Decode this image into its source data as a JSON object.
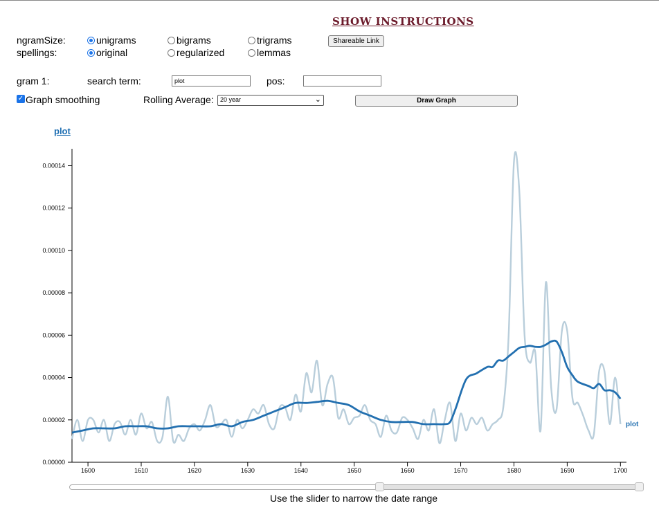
{
  "header": {
    "show_instructions": "SHOW INSTRUCTIONS",
    "shareable_link": "Shareable Link"
  },
  "options": {
    "ngram_label": "ngramSize:",
    "ngram_options": [
      "unigrams",
      "bigrams",
      "trigrams"
    ],
    "ngram_selected": "unigrams",
    "spellings_label": "spellings:",
    "spelling_options": [
      "original",
      "regularized",
      "lemmas"
    ],
    "spelling_selected": "original"
  },
  "query": {
    "gram_label": "gram 1:",
    "search_label": "search term:",
    "search_value": "plot",
    "pos_label": "pos:",
    "pos_value": ""
  },
  "controls": {
    "smoothing_label": "Graph smoothing",
    "smoothing_checked": true,
    "rolling_label": "Rolling Average:",
    "rolling_value": "20 year",
    "draw_button": "Draw Graph"
  },
  "legend": {
    "term": "plot"
  },
  "slider": {
    "caption": "Use the slider to narrow the date range",
    "range": [
      1597,
      1701
    ],
    "selected_start": 1655
  },
  "colors": {
    "smoothed": "#2370b0",
    "raw": "#b9cedb",
    "link": "#1f6fb2",
    "heading": "#6b1a2a"
  },
  "chart_data": {
    "type": "line",
    "xlim": [
      1597,
      1701
    ],
    "ylim": [
      0,
      0.000148
    ],
    "x_ticks": [
      "1600",
      "1610",
      "1620",
      "1630",
      "1640",
      "1650",
      "1660",
      "1670",
      "1680",
      "1690",
      "1700"
    ],
    "y_ticks": [
      "0.00000",
      "0.00002",
      "0.00004",
      "0.00006",
      "0.00008",
      "0.00010",
      "0.00012",
      "0.00014"
    ],
    "series": [
      {
        "name": "plot",
        "style": "smoothed",
        "x": [
          1597,
          1599,
          1601,
          1603,
          1605,
          1607,
          1609,
          1611,
          1613,
          1615,
          1617,
          1619,
          1621,
          1623,
          1625,
          1627,
          1629,
          1631,
          1633,
          1635,
          1637,
          1639,
          1641,
          1643,
          1645,
          1647,
          1649,
          1651,
          1653,
          1655,
          1657,
          1659,
          1661,
          1663,
          1665,
          1667,
          1668,
          1669,
          1671,
          1673,
          1675,
          1676,
          1677,
          1678,
          1679,
          1680,
          1681,
          1682,
          1683,
          1684,
          1685,
          1686,
          1687,
          1688,
          1689,
          1690,
          1691,
          1692,
          1694,
          1695,
          1696,
          1697,
          1698,
          1699,
          1700
        ],
        "y": [
          1.4e-05,
          1.5e-05,
          1.6e-05,
          1.6e-05,
          1.6e-05,
          1.7e-05,
          1.7e-05,
          1.7e-05,
          1.6e-05,
          1.6e-05,
          1.7e-05,
          1.7e-05,
          1.7e-05,
          1.7e-05,
          1.8e-05,
          1.7e-05,
          1.9e-05,
          2e-05,
          2.2e-05,
          2.4e-05,
          2.6e-05,
          2.8e-05,
          2.8e-05,
          2.85e-05,
          2.9e-05,
          2.8e-05,
          2.7e-05,
          2.4e-05,
          2.2e-05,
          2e-05,
          1.9e-05,
          1.9e-05,
          1.9e-05,
          1.8e-05,
          1.8e-05,
          1.8e-05,
          1.9e-05,
          2.5e-05,
          3.9e-05,
          4.2e-05,
          4.5e-05,
          4.5e-05,
          4.8e-05,
          4.8e-05,
          5e-05,
          5.2e-05,
          5.4e-05,
          5.45e-05,
          5.5e-05,
          5.45e-05,
          5.45e-05,
          5.55e-05,
          5.7e-05,
          5.7e-05,
          5.2e-05,
          4.5e-05,
          4.1e-05,
          3.8e-05,
          3.6e-05,
          3.5e-05,
          3.7e-05,
          3.4e-05,
          3.4e-05,
          3.3e-05,
          3e-05
        ]
      },
      {
        "name": "plot",
        "style": "raw",
        "x": [
          1597,
          1598,
          1599,
          1600,
          1601,
          1602,
          1603,
          1604,
          1605,
          1606,
          1607,
          1608,
          1609,
          1610,
          1611,
          1612,
          1613,
          1614,
          1615,
          1616,
          1617,
          1618,
          1619,
          1620,
          1621,
          1622,
          1623,
          1624,
          1625,
          1626,
          1627,
          1628,
          1629,
          1630,
          1631,
          1632,
          1633,
          1634,
          1635,
          1636,
          1637,
          1638,
          1639,
          1640,
          1641,
          1642,
          1643,
          1644,
          1645,
          1646,
          1647,
          1648,
          1649,
          1650,
          1651,
          1652,
          1653,
          1654,
          1655,
          1656,
          1657,
          1658,
          1659,
          1660,
          1661,
          1662,
          1663,
          1664,
          1665,
          1666,
          1667,
          1668,
          1669,
          1670,
          1671,
          1672,
          1673,
          1674,
          1675,
          1676,
          1677,
          1678,
          1679,
          1680,
          1681,
          1682,
          1683,
          1684,
          1685,
          1686,
          1687,
          1688,
          1689,
          1690,
          1691,
          1692,
          1693,
          1694,
          1695,
          1696,
          1697,
          1698,
          1699,
          1700
        ],
        "y": [
          1.1e-05,
          2e-05,
          1e-05,
          2e-05,
          2e-05,
          1.4e-05,
          2e-05,
          1e-05,
          1.8e-05,
          1.9e-05,
          1.3e-05,
          2e-05,
          1.3e-05,
          2.3e-05,
          1.6e-05,
          1.9e-05,
          1e-05,
          1.2e-05,
          3.1e-05,
          1e-05,
          1.3e-05,
          1e-05,
          1.6e-05,
          1.8e-05,
          1.5e-05,
          2e-05,
          2.7e-05,
          1.7e-05,
          1.8e-05,
          2e-05,
          1.2e-05,
          2e-05,
          1.6e-05,
          2e-05,
          2.5e-05,
          2.3e-05,
          2.7e-05,
          1.8e-05,
          1.6e-05,
          2.6e-05,
          2.6e-05,
          2e-05,
          3.2e-05,
          2.4e-05,
          4.2e-05,
          3.3e-05,
          4.8e-05,
          2.7e-05,
          3.7e-05,
          4e-05,
          2.1e-05,
          2.5e-05,
          1.8e-05,
          2.1e-05,
          2.2e-05,
          2.7e-05,
          2e-05,
          1.8e-05,
          1.2e-05,
          2.2e-05,
          1.5e-05,
          1.4e-05,
          2.1e-05,
          2e-05,
          1.6e-05,
          1.1e-05,
          2e-05,
          1.5e-05,
          2.5e-05,
          9e-06,
          2e-05,
          2.8e-05,
          1e-05,
          2.3e-05,
          1.5e-05,
          2.1e-05,
          1.8e-05,
          2.1e-05,
          1.5e-05,
          1.8e-05,
          2e-05,
          2.6e-05,
          6e-05,
          0.000142,
          0.000128,
          6e-05,
          4.7e-05,
          5.2e-05,
          1.5e-05,
          8.5e-05,
          3.5e-05,
          2.5e-05,
          6.2e-05,
          6.2e-05,
          3e-05,
          2.8e-05,
          2.2e-05,
          1.5e-05,
          1.3e-05,
          4.3e-05,
          4.3e-05,
          1.8e-05,
          4e-05,
          1.8e-05
        ]
      }
    ]
  }
}
